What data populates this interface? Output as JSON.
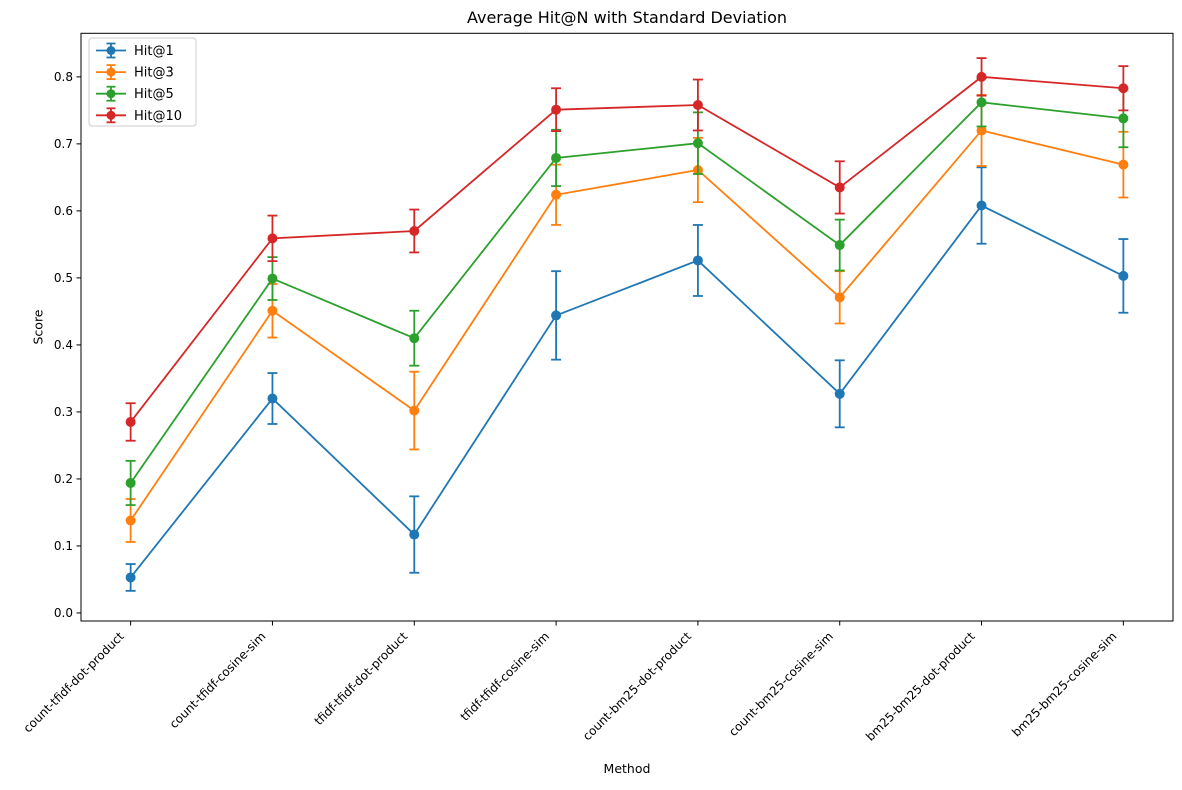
{
  "chart_data": {
    "type": "line",
    "title": "Average Hit@N with Standard Deviation",
    "xlabel": "Method",
    "ylabel": "Score",
    "categories": [
      "count-tfidf-dot-product",
      "count-tfidf-cosine-sim",
      "tfidf-tfidf-dot-product",
      "tfidf-tfidf-cosine-sim",
      "count-bm25-dot-product",
      "count-bm25-cosine-sim",
      "bm25-bm25-dot-product",
      "bm25-bm25-cosine-sim"
    ],
    "series": [
      {
        "name": "Hit@1",
        "color": "#1f77b4",
        "values": [
          0.053,
          0.32,
          0.117,
          0.444,
          0.526,
          0.327,
          0.608,
          0.503
        ],
        "std": [
          0.02,
          0.038,
          0.057,
          0.066,
          0.053,
          0.05,
          0.057,
          0.055
        ]
      },
      {
        "name": "Hit@3",
        "color": "#ff7f0e",
        "values": [
          0.138,
          0.451,
          0.302,
          0.624,
          0.661,
          0.471,
          0.72,
          0.669
        ],
        "std": [
          0.032,
          0.04,
          0.058,
          0.045,
          0.048,
          0.039,
          0.053,
          0.049
        ]
      },
      {
        "name": "Hit@5",
        "color": "#2ca02c",
        "values": [
          0.194,
          0.499,
          0.41,
          0.679,
          0.701,
          0.549,
          0.762,
          0.738
        ],
        "std": [
          0.033,
          0.032,
          0.041,
          0.042,
          0.046,
          0.038,
          0.036,
          0.043
        ]
      },
      {
        "name": "Hit@10",
        "color": "#d62728",
        "values": [
          0.285,
          0.559,
          0.57,
          0.751,
          0.758,
          0.635,
          0.8,
          0.783
        ],
        "std": [
          0.028,
          0.034,
          0.032,
          0.032,
          0.038,
          0.039,
          0.028,
          0.033
        ]
      }
    ],
    "yticks": [
      0.0,
      0.1,
      0.2,
      0.3,
      0.4,
      0.5,
      0.6,
      0.7,
      0.8
    ],
    "ylim": [
      -0.012,
      0.865
    ],
    "xlim": [
      -0.35,
      7.35
    ],
    "grid": false,
    "legend_position": "upper left",
    "axis_color": "#000000",
    "background_color": "#ffffff"
  }
}
